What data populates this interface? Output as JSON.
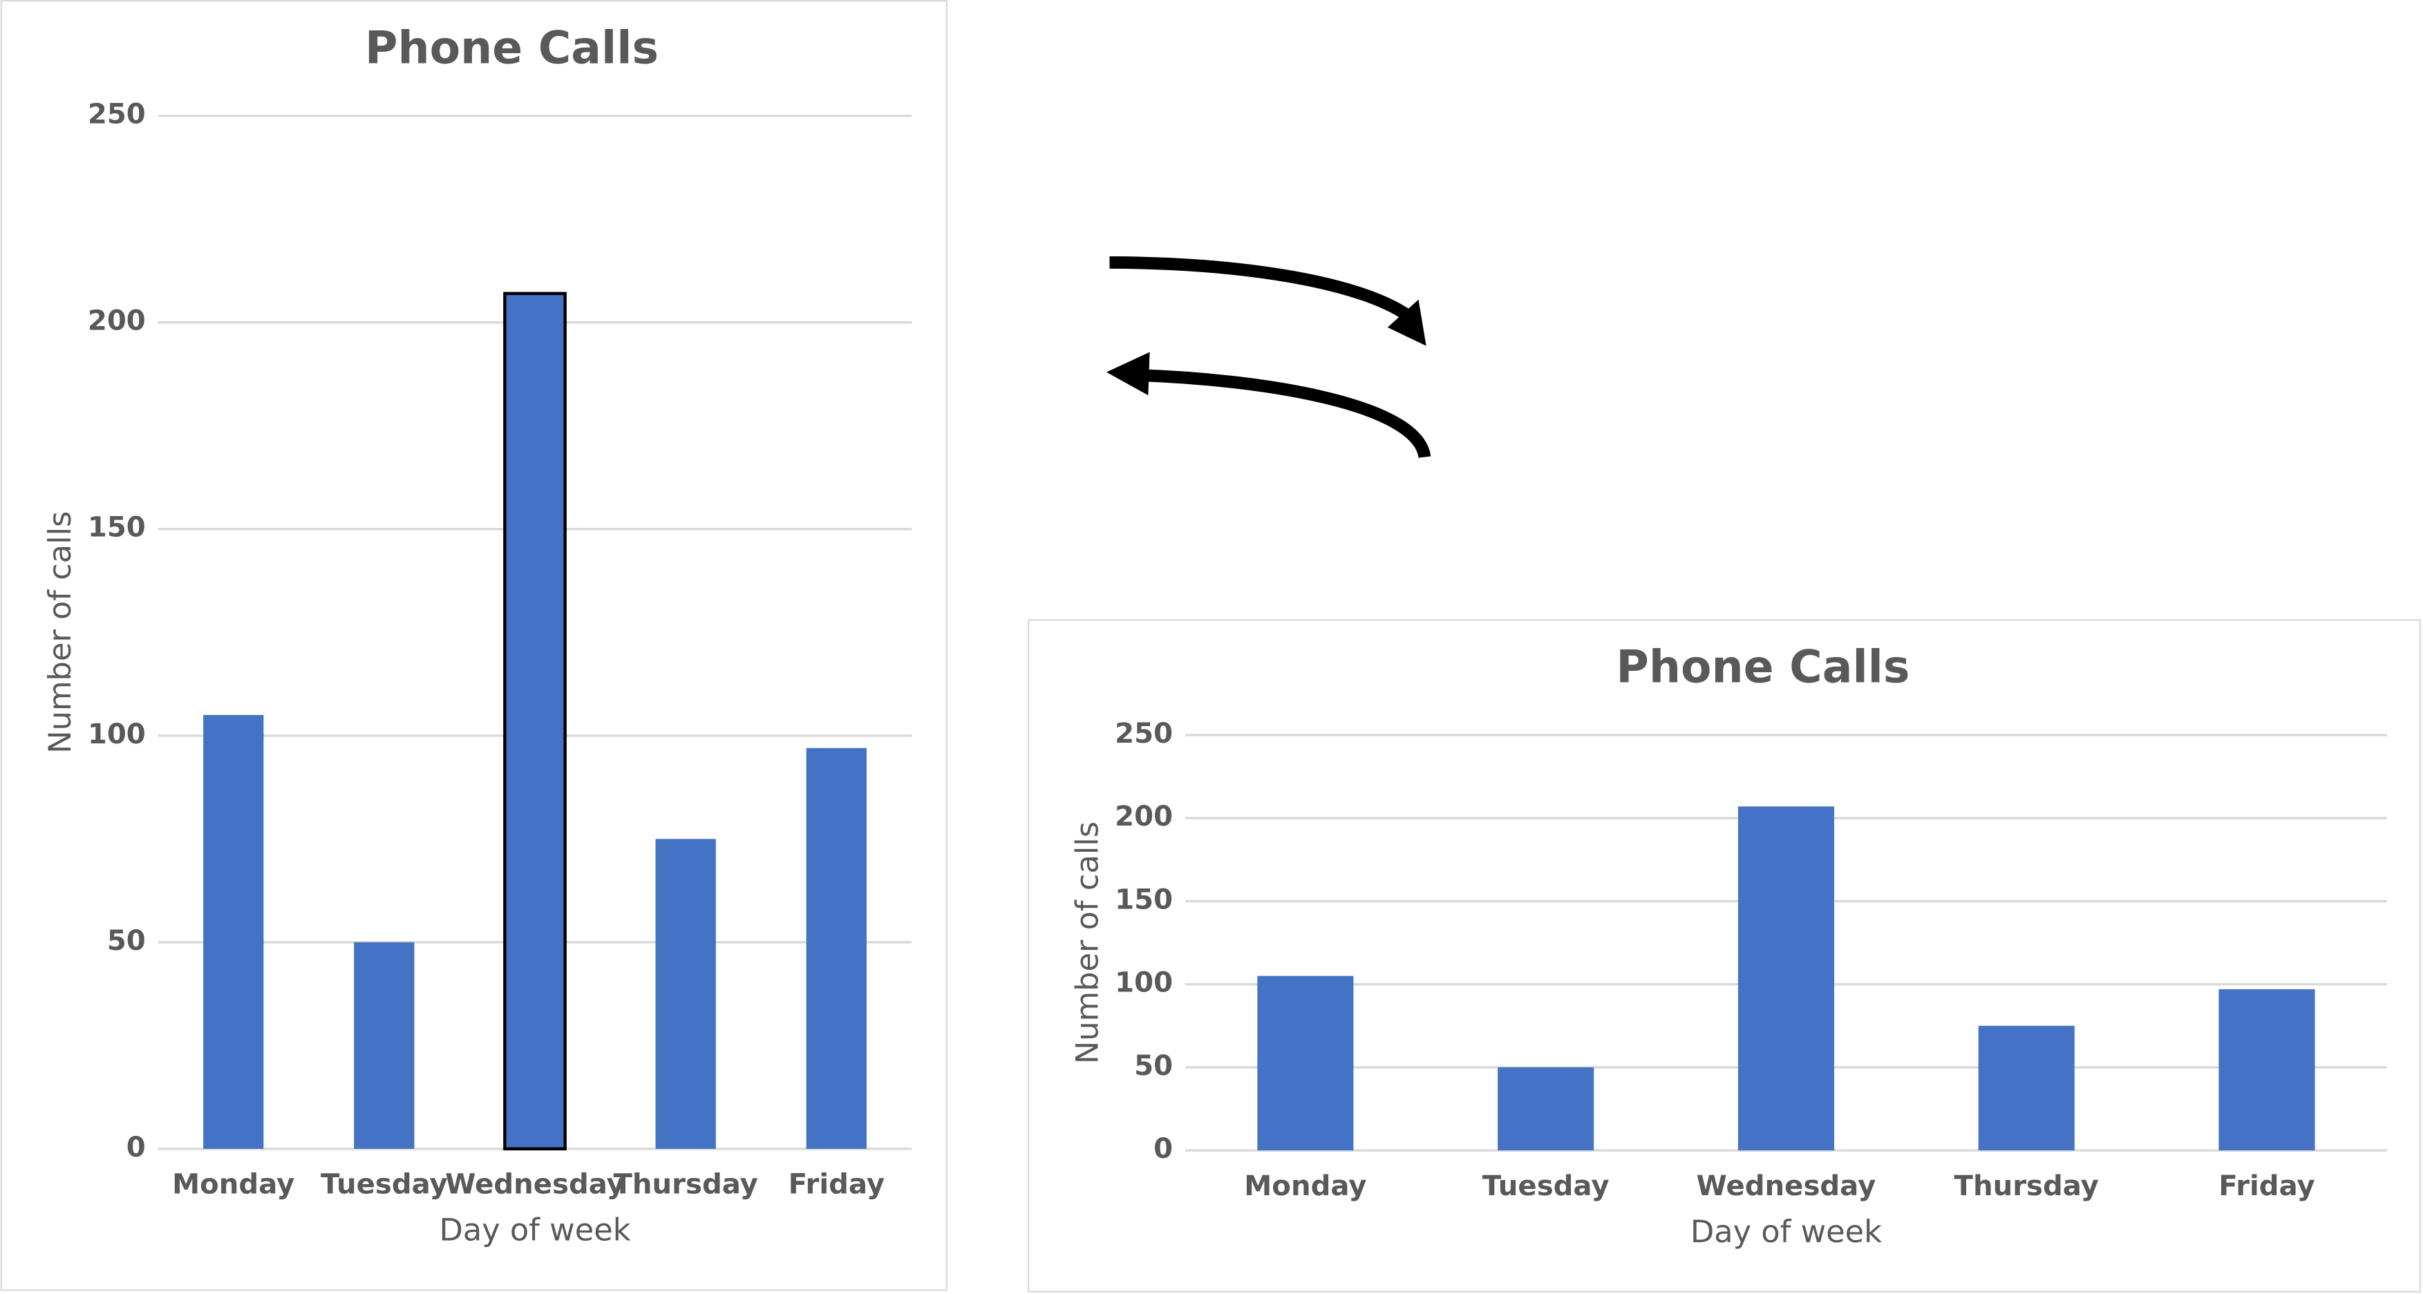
{
  "chart_data": [
    {
      "type": "bar",
      "title": "Phone Calls",
      "x_label": "Day of week",
      "y_label": "Number of calls",
      "categories": [
        "Monday",
        "Tuesday",
        "Wednesday",
        "Thursday",
        "Friday"
      ],
      "values": [
        105,
        50,
        207,
        75,
        97
      ],
      "color": "#4472c4",
      "ylim": [
        0,
        250
      ],
      "yticks": [
        0,
        50,
        100,
        150,
        200,
        250
      ],
      "grid": true,
      "selected_category": "Wednesday"
    },
    {
      "type": "bar",
      "title": "Phone Calls",
      "x_label": "Day of week",
      "y_label": "Number of calls",
      "categories": [
        "Monday",
        "Tuesday",
        "Wednesday",
        "Thursday",
        "Friday"
      ],
      "values": [
        105,
        50,
        207,
        75,
        97
      ],
      "color": "#4472c4",
      "ylim": [
        0,
        250
      ],
      "yticks": [
        0,
        50,
        100,
        150,
        200,
        250
      ],
      "grid": true
    }
  ]
}
